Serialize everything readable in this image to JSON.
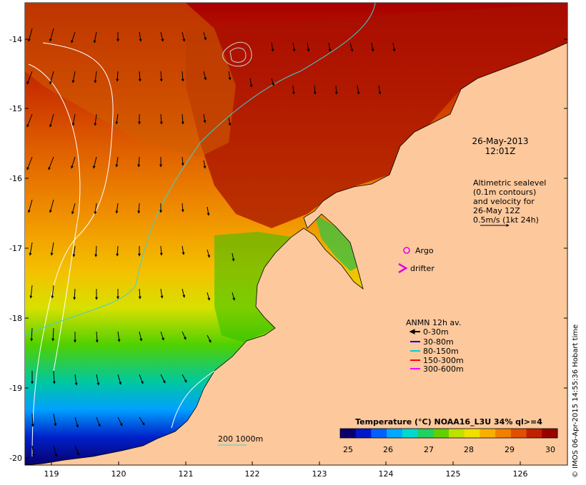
{
  "map": {
    "lon_ticks": [
      "119",
      "120",
      "121",
      "122",
      "123",
      "124",
      "125",
      "126"
    ],
    "lat_ticks": [
      "-14",
      "-15",
      "-16",
      "-17",
      "-18",
      "-19",
      "-20"
    ],
    "date_line1": "26-May-2013",
    "date_line2": "12:01Z",
    "altimetry_lines": [
      "Altimetric sealevel",
      "(0.1m contours)",
      "and velocity for",
      "26-May 12Z",
      "0.5m/s (1kt 24h)"
    ],
    "argo_label": "Argo",
    "drifter_label": "drifter",
    "anmn": {
      "title": "ANMN 12h av.",
      "items": [
        {
          "label": "0-30m",
          "color": "#000000"
        },
        {
          "label": "30-80m",
          "color": "#0000ff"
        },
        {
          "label": "80-150m",
          "color": "#00d0d0"
        },
        {
          "label": "150-300m",
          "color": "#ff0000"
        },
        {
          "label": "300-600m",
          "color": "#ff00ff"
        }
      ]
    },
    "bathy_label": "200  1000m",
    "colorbar": {
      "title": "Temperature (°C) NOAA16_L3U 34% ql>=4",
      "ticks": [
        "25",
        "26",
        "27",
        "28",
        "29",
        "30"
      ],
      "colors": [
        "#08006e",
        "#0018c8",
        "#0060ff",
        "#00a8ff",
        "#00d8d0",
        "#20d060",
        "#60d000",
        "#c0e000",
        "#f0e000",
        "#f8b000",
        "#f08000",
        "#e05000",
        "#c02000",
        "#980000"
      ]
    },
    "credit": "© IMOS 06-Apr-2015 14:55:36 Hobart time",
    "colors": {
      "land": "#fcc89c",
      "contour_white": "#ffffff",
      "contour_cyan": "#40d0d0",
      "arrow": "#000000",
      "argo": "#e000e0"
    }
  }
}
